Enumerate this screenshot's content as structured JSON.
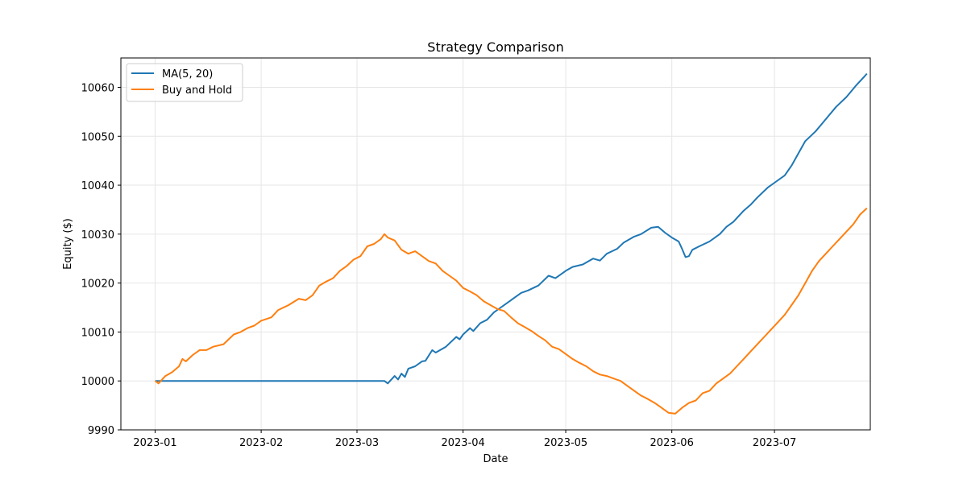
{
  "chart_data": {
    "type": "line",
    "title": "Strategy Comparison",
    "xlabel": "Date",
    "ylabel": "Equity ($)",
    "xlim": [
      "2022-12-22",
      "2023-07-29"
    ],
    "ylim": [
      9990,
      10066
    ],
    "x_ticks": [
      "2023-01",
      "2023-02",
      "2023-03",
      "2023-04",
      "2023-05",
      "2023-06",
      "2023-07"
    ],
    "y_ticks": [
      9990,
      10000,
      10010,
      10020,
      10030,
      10040,
      10050,
      10060
    ],
    "grid": true,
    "legend_position": "top-left",
    "colors": {
      "ma": "#1f77b4",
      "bh": "#ff7f0e",
      "grid": "#e6e6e6"
    },
    "series": [
      {
        "name": "MA(5, 20)",
        "color": "#1f77b4",
        "points": [
          [
            "2023-01-01",
            10000
          ],
          [
            "2023-01-15",
            10000
          ],
          [
            "2023-02-01",
            10000
          ],
          [
            "2023-02-15",
            10000
          ],
          [
            "2023-03-01",
            10000
          ],
          [
            "2023-03-09",
            10000
          ],
          [
            "2023-03-10",
            9999.5
          ],
          [
            "2023-03-12",
            10001
          ],
          [
            "2023-03-13",
            10000.3
          ],
          [
            "2023-03-14",
            10001.5
          ],
          [
            "2023-03-15",
            10000.8
          ],
          [
            "2023-03-16",
            10002.5
          ],
          [
            "2023-03-18",
            10003
          ],
          [
            "2023-03-20",
            10004
          ],
          [
            "2023-03-21",
            10004.1
          ],
          [
            "2023-03-23",
            10006.3
          ],
          [
            "2023-03-24",
            10005.8
          ],
          [
            "2023-03-27",
            10007
          ],
          [
            "2023-03-30",
            10009
          ],
          [
            "2023-03-31",
            10008.5
          ],
          [
            "2023-04-01",
            10009.5
          ],
          [
            "2023-04-03",
            10010.8
          ],
          [
            "2023-04-04",
            10010.2
          ],
          [
            "2023-04-06",
            10011.8
          ],
          [
            "2023-04-08",
            10012.5
          ],
          [
            "2023-04-10",
            10014
          ],
          [
            "2023-04-12",
            10015
          ],
          [
            "2023-04-15",
            10016.5
          ],
          [
            "2023-04-18",
            10018
          ],
          [
            "2023-04-20",
            10018.5
          ],
          [
            "2023-04-23",
            10019.5
          ],
          [
            "2023-04-26",
            10021.5
          ],
          [
            "2023-04-28",
            10021
          ],
          [
            "2023-05-01",
            10022.5
          ],
          [
            "2023-05-03",
            10023.3
          ],
          [
            "2023-05-06",
            10023.8
          ],
          [
            "2023-05-09",
            10025
          ],
          [
            "2023-05-11",
            10024.6
          ],
          [
            "2023-05-13",
            10026
          ],
          [
            "2023-05-16",
            10027
          ],
          [
            "2023-05-18",
            10028.3
          ],
          [
            "2023-05-21",
            10029.5
          ],
          [
            "2023-05-23",
            10030
          ],
          [
            "2023-05-26",
            10031.3
          ],
          [
            "2023-05-28",
            10031.5
          ],
          [
            "2023-05-30",
            10030.3
          ],
          [
            "2023-06-01",
            10029.3
          ],
          [
            "2023-06-03",
            10028.5
          ],
          [
            "2023-06-04",
            10027
          ],
          [
            "2023-06-05",
            10025.3
          ],
          [
            "2023-06-06",
            10025.5
          ],
          [
            "2023-06-07",
            10026.8
          ],
          [
            "2023-06-09",
            10027.5
          ],
          [
            "2023-06-12",
            10028.5
          ],
          [
            "2023-06-15",
            10030
          ],
          [
            "2023-06-17",
            10031.5
          ],
          [
            "2023-06-19",
            10032.5
          ],
          [
            "2023-06-22",
            10034.8
          ],
          [
            "2023-06-24",
            10036
          ],
          [
            "2023-06-26",
            10037.5
          ],
          [
            "2023-06-29",
            10039.5
          ],
          [
            "2023-07-01",
            10040.5
          ],
          [
            "2023-07-04",
            10042
          ],
          [
            "2023-07-06",
            10044
          ],
          [
            "2023-07-08",
            10046.5
          ],
          [
            "2023-07-10",
            10049
          ],
          [
            "2023-07-13",
            10051
          ],
          [
            "2023-07-16",
            10053.5
          ],
          [
            "2023-07-19",
            10056
          ],
          [
            "2023-07-22",
            10058
          ],
          [
            "2023-07-25",
            10060.5
          ],
          [
            "2023-07-27",
            10062
          ],
          [
            "2023-07-28",
            10062.8
          ]
        ]
      },
      {
        "name": "Buy and Hold",
        "color": "#ff7f0e",
        "points": [
          [
            "2023-01-01",
            10000
          ],
          [
            "2023-01-02",
            9999.5
          ],
          [
            "2023-01-04",
            10001
          ],
          [
            "2023-01-06",
            10001.8
          ],
          [
            "2023-01-08",
            10003
          ],
          [
            "2023-01-09",
            10004.5
          ],
          [
            "2023-01-10",
            10004
          ],
          [
            "2023-01-12",
            10005.3
          ],
          [
            "2023-01-14",
            10006.3
          ],
          [
            "2023-01-16",
            10006.3
          ],
          [
            "2023-01-18",
            10007
          ],
          [
            "2023-01-21",
            10007.5
          ],
          [
            "2023-01-24",
            10009.5
          ],
          [
            "2023-01-26",
            10010
          ],
          [
            "2023-01-28",
            10010.8
          ],
          [
            "2023-01-30",
            10011.3
          ],
          [
            "2023-02-01",
            10012.3
          ],
          [
            "2023-02-04",
            10013
          ],
          [
            "2023-02-06",
            10014.5
          ],
          [
            "2023-02-09",
            10015.5
          ],
          [
            "2023-02-12",
            10016.8
          ],
          [
            "2023-02-14",
            10016.5
          ],
          [
            "2023-02-16",
            10017.5
          ],
          [
            "2023-02-18",
            10019.5
          ],
          [
            "2023-02-20",
            10020.3
          ],
          [
            "2023-02-22",
            10021
          ],
          [
            "2023-02-24",
            10022.5
          ],
          [
            "2023-02-26",
            10023.5
          ],
          [
            "2023-02-28",
            10024.8
          ],
          [
            "2023-03-02",
            10025.5
          ],
          [
            "2023-03-04",
            10027.5
          ],
          [
            "2023-03-06",
            10028
          ],
          [
            "2023-03-08",
            10029
          ],
          [
            "2023-03-09",
            10030
          ],
          [
            "2023-03-10",
            10029.3
          ],
          [
            "2023-03-12",
            10028.7
          ],
          [
            "2023-03-14",
            10026.8
          ],
          [
            "2023-03-16",
            10026
          ],
          [
            "2023-03-18",
            10026.5
          ],
          [
            "2023-03-20",
            10025.5
          ],
          [
            "2023-03-22",
            10024.5
          ],
          [
            "2023-03-24",
            10024
          ],
          [
            "2023-03-26",
            10022.5
          ],
          [
            "2023-03-28",
            10021.5
          ],
          [
            "2023-03-30",
            10020.5
          ],
          [
            "2023-04-01",
            10019
          ],
          [
            "2023-04-03",
            10018.3
          ],
          [
            "2023-04-05",
            10017.5
          ],
          [
            "2023-04-07",
            10016.3
          ],
          [
            "2023-04-09",
            10015.5
          ],
          [
            "2023-04-11",
            10014.7
          ],
          [
            "2023-04-13",
            10014.3
          ],
          [
            "2023-04-15",
            10013
          ],
          [
            "2023-04-17",
            10011.8
          ],
          [
            "2023-04-19",
            10011
          ],
          [
            "2023-04-21",
            10010.2
          ],
          [
            "2023-04-23",
            10009.2
          ],
          [
            "2023-04-25",
            10008.3
          ],
          [
            "2023-04-27",
            10007
          ],
          [
            "2023-04-29",
            10006.5
          ],
          [
            "2023-05-01",
            10005.5
          ],
          [
            "2023-05-03",
            10004.5
          ],
          [
            "2023-05-05",
            10003.7
          ],
          [
            "2023-05-07",
            10003
          ],
          [
            "2023-05-09",
            10002
          ],
          [
            "2023-05-11",
            10001.3
          ],
          [
            "2023-05-13",
            10001
          ],
          [
            "2023-05-15",
            10000.5
          ],
          [
            "2023-05-17",
            10000
          ],
          [
            "2023-05-19",
            9999
          ],
          [
            "2023-05-21",
            9998
          ],
          [
            "2023-05-23",
            9997
          ],
          [
            "2023-05-25",
            9996.3
          ],
          [
            "2023-05-27",
            9995.5
          ],
          [
            "2023-05-29",
            9994.5
          ],
          [
            "2023-05-31",
            9993.5
          ],
          [
            "2023-06-02",
            9993.3
          ],
          [
            "2023-06-04",
            9994.5
          ],
          [
            "2023-06-06",
            9995.5
          ],
          [
            "2023-06-08",
            9996
          ],
          [
            "2023-06-10",
            9997.5
          ],
          [
            "2023-06-12",
            9998
          ],
          [
            "2023-06-14",
            9999.5
          ],
          [
            "2023-06-16",
            10000.5
          ],
          [
            "2023-06-18",
            10001.5
          ],
          [
            "2023-06-20",
            10003
          ],
          [
            "2023-06-22",
            10004.5
          ],
          [
            "2023-06-24",
            10006
          ],
          [
            "2023-06-26",
            10007.5
          ],
          [
            "2023-06-28",
            10009
          ],
          [
            "2023-06-30",
            10010.5
          ],
          [
            "2023-07-02",
            10012
          ],
          [
            "2023-07-04",
            10013.5
          ],
          [
            "2023-07-06",
            10015.5
          ],
          [
            "2023-07-08",
            10017.5
          ],
          [
            "2023-07-10",
            10020
          ],
          [
            "2023-07-12",
            10022.5
          ],
          [
            "2023-07-14",
            10024.5
          ],
          [
            "2023-07-16",
            10026
          ],
          [
            "2023-07-18",
            10027.5
          ],
          [
            "2023-07-20",
            10029
          ],
          [
            "2023-07-22",
            10030.5
          ],
          [
            "2023-07-24",
            10032
          ],
          [
            "2023-07-26",
            10034
          ],
          [
            "2023-07-28",
            10035.3
          ]
        ]
      }
    ]
  }
}
